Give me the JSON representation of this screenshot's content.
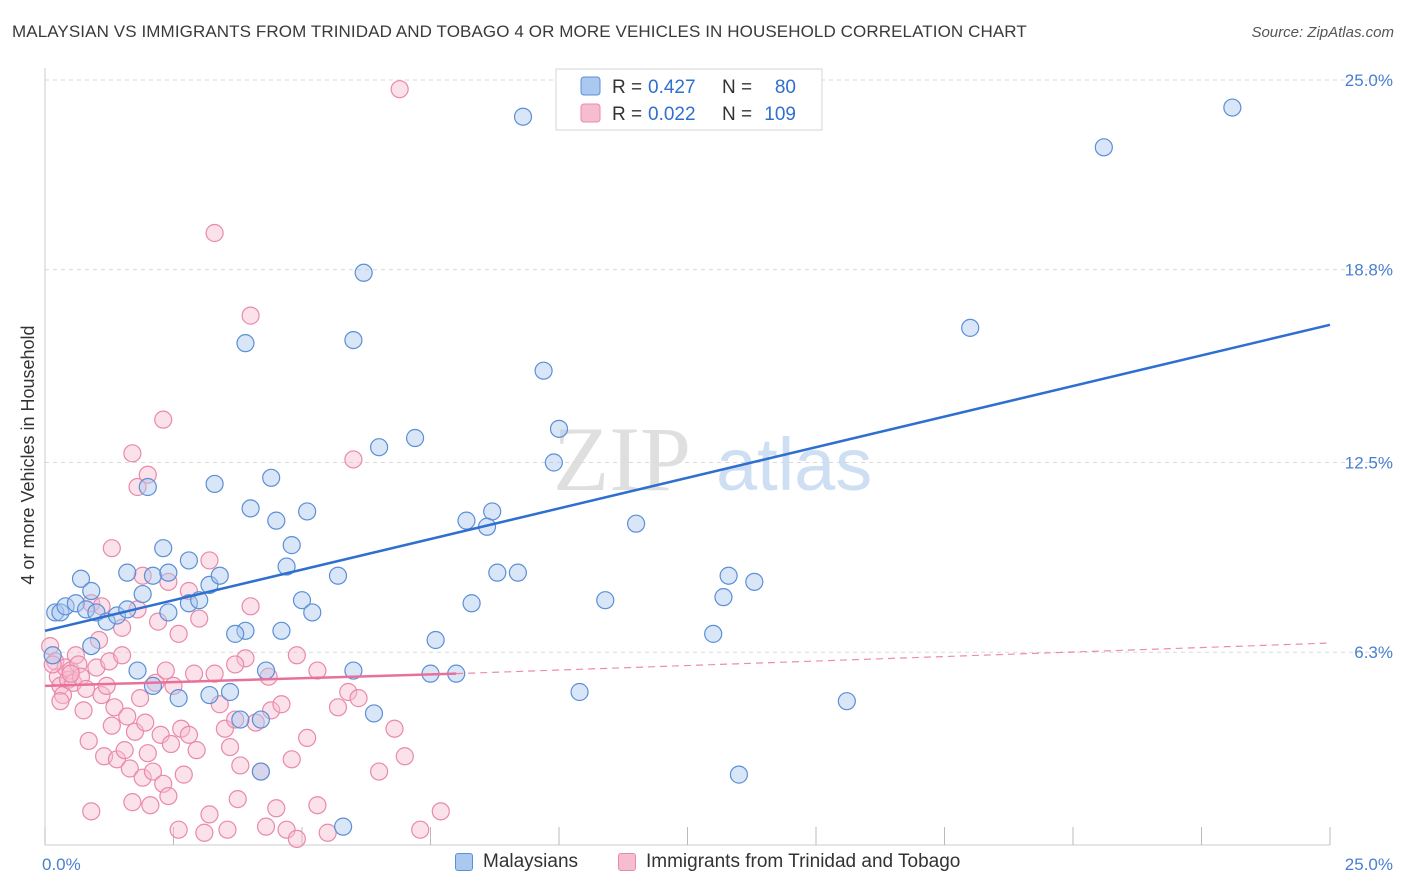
{
  "header": {
    "title": "MALAYSIAN VS IMMIGRANTS FROM TRINIDAD AND TOBAGO 4 OR MORE VEHICLES IN HOUSEHOLD CORRELATION CHART",
    "source": "Source: ZipAtlas.com"
  },
  "watermark": {
    "zip": "ZIP",
    "atlas": "atlas"
  },
  "colors": {
    "blue_fill": "#aac8f0",
    "blue_stroke": "#5b8fd6",
    "blue_line": "#2f6fd0",
    "pink_fill": "#f6bcd0",
    "pink_stroke": "#e98aa8",
    "pink_line": "#e8709a",
    "axis_label": "#4a7fd0",
    "grid": "#d9d9d9"
  },
  "legend": {
    "rows": [
      {
        "r_label": "R =",
        "r_value": "0.427",
        "n_label": "N =",
        "n_value": "80"
      },
      {
        "r_label": "R =",
        "r_value": "0.022",
        "n_label": "N =",
        "n_value": "109"
      }
    ]
  },
  "bottom_legend": {
    "series1": "Malaysians",
    "series2": "Immigrants from Trinidad and Tobago"
  },
  "chart_data": {
    "type": "scatter",
    "title": "MALAYSIAN VS IMMIGRANTS FROM TRINIDAD AND TOBAGO 4 OR MORE VEHICLES IN HOUSEHOLD CORRELATION CHART",
    "xlabel": "",
    "ylabel": "4 or more Vehicles in Household",
    "xlim": [
      0,
      25
    ],
    "ylim": [
      0,
      25
    ],
    "x_tick_labels": [
      "0.0%",
      "25.0%"
    ],
    "y_ticks": [
      6.3,
      12.5,
      18.8,
      25.0
    ],
    "y_tick_labels": [
      "6.3%",
      "12.5%",
      "18.8%",
      "25.0%"
    ],
    "legend_position": "top-center",
    "series": [
      {
        "name": "Malaysians",
        "r": 0.427,
        "n": 80,
        "trend": {
          "x": [
            0,
            25
          ],
          "y": [
            7.0,
            17.0
          ]
        },
        "points": [
          [
            0.2,
            7.6
          ],
          [
            0.3,
            7.6
          ],
          [
            0.4,
            7.8
          ],
          [
            0.6,
            7.9
          ],
          [
            0.7,
            8.7
          ],
          [
            0.9,
            8.3
          ],
          [
            0.8,
            7.7
          ],
          [
            1.0,
            7.6
          ],
          [
            1.2,
            7.3
          ],
          [
            1.4,
            7.5
          ],
          [
            1.6,
            7.7
          ],
          [
            1.6,
            8.9
          ],
          [
            1.9,
            8.2
          ],
          [
            2.1,
            8.8
          ],
          [
            2.4,
            8.9
          ],
          [
            2.4,
            7.6
          ],
          [
            2.8,
            7.9
          ],
          [
            3.0,
            8.0
          ],
          [
            3.2,
            8.5
          ],
          [
            3.4,
            8.8
          ],
          [
            2.3,
            9.7
          ],
          [
            2.8,
            9.3
          ],
          [
            2.0,
            11.7
          ],
          [
            3.3,
            11.8
          ],
          [
            4.0,
            11.0
          ],
          [
            4.4,
            12.0
          ],
          [
            4.5,
            10.6
          ],
          [
            4.8,
            9.8
          ],
          [
            5.1,
            10.9
          ],
          [
            4.7,
            9.1
          ],
          [
            5.0,
            8.0
          ],
          [
            5.2,
            7.6
          ],
          [
            5.7,
            8.8
          ],
          [
            4.6,
            7.0
          ],
          [
            3.9,
            7.0
          ],
          [
            3.7,
            6.9
          ],
          [
            2.6,
            4.8
          ],
          [
            3.2,
            4.9
          ],
          [
            3.8,
            4.1
          ],
          [
            4.2,
            4.1
          ],
          [
            4.2,
            2.4
          ],
          [
            5.8,
            0.6
          ],
          [
            6.4,
            4.3
          ],
          [
            7.5,
            5.6
          ],
          [
            7.6,
            6.7
          ],
          [
            8.0,
            5.6
          ],
          [
            8.2,
            10.6
          ],
          [
            8.7,
            10.9
          ],
          [
            8.3,
            7.9
          ],
          [
            8.8,
            8.9
          ],
          [
            9.2,
            8.9
          ],
          [
            8.6,
            10.4
          ],
          [
            10.4,
            5.0
          ],
          [
            10.9,
            8.0
          ],
          [
            11.5,
            10.5
          ],
          [
            13.0,
            6.9
          ],
          [
            13.2,
            8.1
          ],
          [
            13.3,
            8.8
          ],
          [
            13.8,
            8.6
          ],
          [
            13.5,
            2.3
          ],
          [
            15.6,
            4.7
          ],
          [
            6.0,
            16.5
          ],
          [
            6.2,
            18.7
          ],
          [
            3.9,
            16.4
          ],
          [
            6.5,
            13.0
          ],
          [
            7.2,
            13.3
          ],
          [
            9.9,
            12.5
          ],
          [
            10.0,
            13.6
          ],
          [
            9.7,
            15.5
          ],
          [
            9.3,
            23.8
          ],
          [
            18.0,
            16.9
          ],
          [
            20.6,
            22.8
          ],
          [
            23.1,
            24.1
          ],
          [
            0.15,
            6.2
          ],
          [
            0.9,
            6.5
          ],
          [
            1.8,
            5.7
          ],
          [
            4.3,
            5.7
          ],
          [
            6.0,
            5.7
          ],
          [
            2.1,
            5.2
          ],
          [
            3.6,
            5.0
          ]
        ]
      },
      {
        "name": "Immigrants from Trinidad and Tobago",
        "r": 0.022,
        "n": 109,
        "trend": {
          "x": [
            0,
            8
          ],
          "y": [
            5.2,
            5.6
          ]
        },
        "trend_extended": {
          "x": [
            8,
            25
          ],
          "y": [
            5.6,
            6.6
          ]
        },
        "points": [
          [
            0.1,
            6.5
          ],
          [
            0.2,
            6.0
          ],
          [
            0.25,
            5.5
          ],
          [
            0.3,
            5.2
          ],
          [
            0.35,
            4.9
          ],
          [
            0.4,
            5.8
          ],
          [
            0.45,
            5.4
          ],
          [
            0.5,
            5.7
          ],
          [
            0.55,
            5.3
          ],
          [
            0.6,
            6.2
          ],
          [
            0.65,
            5.9
          ],
          [
            0.7,
            5.5
          ],
          [
            0.75,
            4.4
          ],
          [
            0.8,
            5.1
          ],
          [
            0.85,
            3.4
          ],
          [
            0.9,
            7.9
          ],
          [
            1.0,
            5.8
          ],
          [
            1.05,
            6.7
          ],
          [
            1.1,
            4.9
          ],
          [
            1.15,
            2.9
          ],
          [
            1.2,
            5.2
          ],
          [
            1.25,
            6.0
          ],
          [
            1.3,
            3.9
          ],
          [
            1.35,
            4.5
          ],
          [
            1.4,
            2.8
          ],
          [
            1.5,
            6.2
          ],
          [
            1.55,
            3.1
          ],
          [
            1.6,
            4.2
          ],
          [
            1.65,
            2.5
          ],
          [
            1.7,
            1.4
          ],
          [
            1.75,
            3.7
          ],
          [
            1.8,
            7.7
          ],
          [
            1.85,
            4.8
          ],
          [
            1.9,
            2.2
          ],
          [
            1.95,
            4.0
          ],
          [
            2.0,
            3.0
          ],
          [
            2.05,
            1.3
          ],
          [
            2.1,
            2.4
          ],
          [
            2.15,
            5.3
          ],
          [
            2.2,
            7.3
          ],
          [
            2.25,
            3.6
          ],
          [
            2.3,
            2.0
          ],
          [
            2.35,
            5.7
          ],
          [
            2.4,
            1.6
          ],
          [
            2.45,
            3.3
          ],
          [
            2.5,
            5.2
          ],
          [
            2.6,
            0.5
          ],
          [
            2.65,
            3.8
          ],
          [
            2.7,
            2.3
          ],
          [
            2.8,
            3.6
          ],
          [
            2.9,
            5.6
          ],
          [
            3.0,
            7.4
          ],
          [
            3.1,
            0.4
          ],
          [
            3.2,
            1.0
          ],
          [
            3.3,
            5.6
          ],
          [
            3.4,
            4.6
          ],
          [
            3.5,
            3.8
          ],
          [
            3.55,
            0.5
          ],
          [
            3.6,
            3.2
          ],
          [
            3.7,
            4.1
          ],
          [
            3.75,
            1.5
          ],
          [
            3.8,
            2.6
          ],
          [
            3.9,
            6.1
          ],
          [
            4.0,
            7.8
          ],
          [
            4.1,
            4.0
          ],
          [
            4.2,
            2.4
          ],
          [
            4.3,
            0.6
          ],
          [
            4.35,
            5.5
          ],
          [
            4.4,
            4.4
          ],
          [
            4.5,
            1.2
          ],
          [
            4.6,
            4.6
          ],
          [
            4.7,
            0.5
          ],
          [
            4.8,
            2.8
          ],
          [
            4.9,
            0.2
          ],
          [
            5.1,
            3.5
          ],
          [
            5.3,
            1.3
          ],
          [
            5.5,
            0.4
          ],
          [
            5.7,
            4.5
          ],
          [
            5.9,
            5.0
          ],
          [
            6.1,
            4.8
          ],
          [
            6.5,
            2.4
          ],
          [
            7.0,
            2.9
          ],
          [
            7.3,
            0.5
          ],
          [
            6.8,
            3.8
          ],
          [
            7.7,
            1.1
          ],
          [
            0.9,
            1.1
          ],
          [
            1.3,
            9.7
          ],
          [
            1.7,
            12.8
          ],
          [
            1.8,
            11.7
          ],
          [
            2.0,
            12.1
          ],
          [
            2.3,
            13.9
          ],
          [
            3.2,
            9.3
          ],
          [
            4.0,
            17.3
          ],
          [
            3.3,
            20.0
          ],
          [
            6.0,
            12.6
          ],
          [
            6.9,
            24.7
          ],
          [
            5.3,
            5.7
          ],
          [
            2.8,
            8.3
          ],
          [
            2.4,
            8.6
          ],
          [
            1.9,
            8.8
          ],
          [
            1.5,
            7.1
          ],
          [
            0.5,
            5.6
          ],
          [
            0.15,
            5.9
          ],
          [
            0.3,
            4.7
          ],
          [
            3.7,
            5.9
          ],
          [
            4.9,
            6.2
          ],
          [
            2.95,
            3.1
          ],
          [
            1.1,
            7.8
          ],
          [
            2.6,
            6.9
          ]
        ]
      }
    ]
  }
}
